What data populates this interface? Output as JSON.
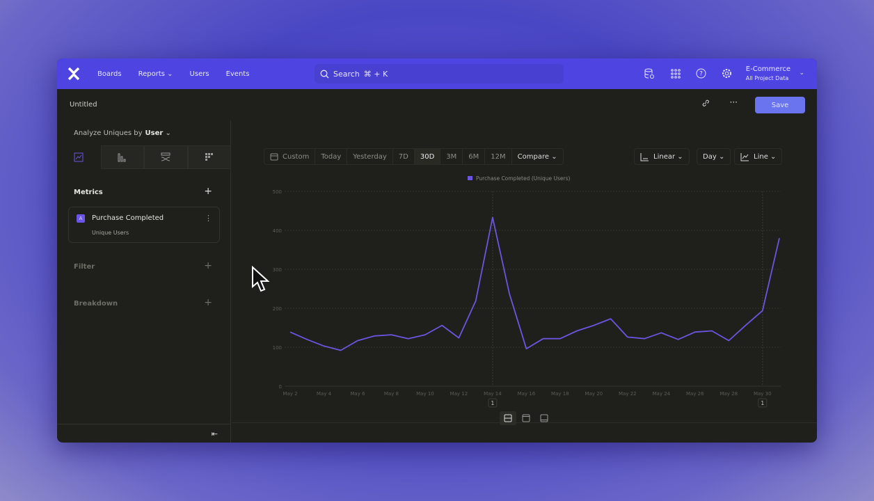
{
  "topbar": {
    "nav": [
      "Boards",
      "Reports",
      "Users",
      "Events"
    ],
    "search_placeholder": "Search",
    "search_shortcut": "⌘ + K",
    "project_name": "E-Commerce",
    "project_scope": "All Project Data",
    "icons": [
      "database-icon",
      "apps-grid-icon",
      "help-icon",
      "settings-icon"
    ],
    "brand_color": "#4e44e2"
  },
  "subbar": {
    "title": "Untitled",
    "save_label": "Save"
  },
  "sidebar": {
    "analyze_label": "Analyze Uniques by",
    "analyze_value": "User",
    "tabs": [
      "insights-chart-icon",
      "funnels-icon",
      "flows-icon",
      "retention-icon"
    ],
    "metrics_label": "Metrics",
    "metric": {
      "badge": "A",
      "name": "Purchase Completed",
      "aggregation": "Unique Users"
    },
    "filter_label": "Filter",
    "breakdown_label": "Breakdown"
  },
  "toolbar": {
    "ranges": [
      "Custom",
      "Today",
      "Yesterday",
      "7D",
      "30D",
      "3M",
      "6M",
      "12M"
    ],
    "selected_range": "30D",
    "compare_label": "Compare",
    "scale_label": "Linear",
    "interval_label": "Day",
    "chart_type_label": "Line"
  },
  "chart_data": {
    "type": "line",
    "legend": "Purchase Completed (Unique Users)",
    "series_color": "#6c55e0",
    "x": [
      "May 2",
      "May 3",
      "May 4",
      "May 5",
      "May 6",
      "May 7",
      "May 8",
      "May 9",
      "May 10",
      "May 11",
      "May 12",
      "May 13",
      "May 14",
      "May 15",
      "May 16",
      "May 17",
      "May 18",
      "May 19",
      "May 20",
      "May 21",
      "May 22",
      "May 23",
      "May 24",
      "May 25",
      "May 26",
      "May 27",
      "May 28",
      "May 29",
      "May 30",
      "May 31"
    ],
    "values": [
      139,
      120,
      103,
      92,
      117,
      129,
      132,
      122,
      132,
      156,
      124,
      219,
      433,
      237,
      96,
      122,
      122,
      142,
      156,
      173,
      126,
      122,
      137,
      120,
      139,
      142,
      117,
      156,
      194,
      380
    ],
    "x_tick_labels": [
      "May 2",
      "May 4",
      "May 6",
      "May 8",
      "May 10",
      "May 12",
      "May 14",
      "May 16",
      "May 18",
      "May 20",
      "May 22",
      "May 24",
      "May 26",
      "May 28",
      "May 30"
    ],
    "y_ticks": [
      0,
      100,
      200,
      300,
      400,
      500
    ],
    "ylim": [
      0,
      500
    ],
    "grid": true,
    "annotations": [
      {
        "x": "May 14",
        "label": "1"
      },
      {
        "x": "May 30",
        "label": "1"
      }
    ]
  }
}
